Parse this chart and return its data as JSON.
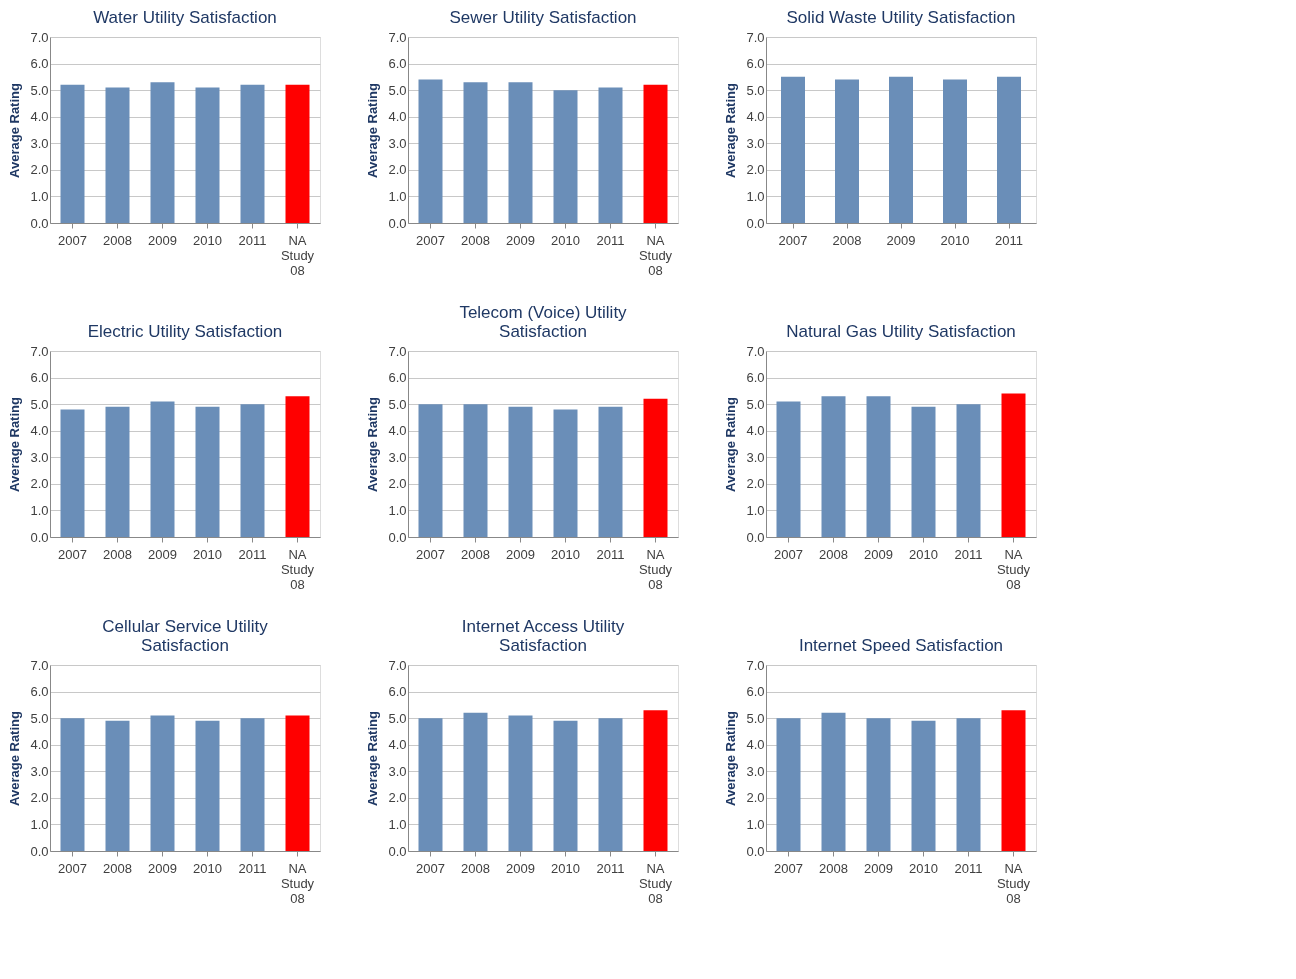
{
  "chart_data": [
    {
      "type": "bar",
      "title": "Water Utility Satisfaction",
      "ylabel": "Average Rating",
      "categories": [
        "2007",
        "2008",
        "2009",
        "2010",
        "2011",
        "NA Study 08"
      ],
      "values": [
        5.2,
        5.1,
        5.3,
        5.1,
        5.2,
        5.2
      ],
      "colors": [
        "#6a8eb8",
        "#6a8eb8",
        "#6a8eb8",
        "#6a8eb8",
        "#6a8eb8",
        "#ff0000"
      ],
      "ylim": [
        0,
        7
      ],
      "yticks": [
        {
          "value": 0,
          "label": "0.0"
        },
        {
          "value": 1,
          "label": "1.0"
        },
        {
          "value": 2,
          "label": "2.0"
        },
        {
          "value": 3,
          "label": "3.0"
        },
        {
          "value": 4,
          "label": "4.0"
        },
        {
          "value": 5,
          "label": "5.0"
        },
        {
          "value": 6,
          "label": "6.0"
        },
        {
          "value": 7,
          "label": "7.0"
        }
      ],
      "grid": "y"
    },
    {
      "type": "bar",
      "title": "Sewer Utility Satisfaction",
      "ylabel": "Average Rating",
      "categories": [
        "2007",
        "2008",
        "2009",
        "2010",
        "2011",
        "NA Study 08"
      ],
      "values": [
        5.4,
        5.3,
        5.3,
        5.0,
        5.1,
        5.2
      ],
      "colors": [
        "#6a8eb8",
        "#6a8eb8",
        "#6a8eb8",
        "#6a8eb8",
        "#6a8eb8",
        "#ff0000"
      ],
      "ylim": [
        0,
        7
      ],
      "yticks": [
        {
          "value": 0,
          "label": "0.0"
        },
        {
          "value": 1,
          "label": "1.0"
        },
        {
          "value": 2,
          "label": "2.0"
        },
        {
          "value": 3,
          "label": "3.0"
        },
        {
          "value": 4,
          "label": "4.0"
        },
        {
          "value": 5,
          "label": "5.0"
        },
        {
          "value": 6,
          "label": "6.0"
        },
        {
          "value": 7,
          "label": "7.0"
        }
      ],
      "grid": "y"
    },
    {
      "type": "bar",
      "title": "Solid Waste Utility Satisfaction",
      "ylabel": "Average Rating",
      "categories": [
        "2007",
        "2008",
        "2009",
        "2010",
        "2011"
      ],
      "values": [
        5.5,
        5.4,
        5.5,
        5.4,
        5.5
      ],
      "colors": [
        "#6a8eb8",
        "#6a8eb8",
        "#6a8eb8",
        "#6a8eb8",
        "#6a8eb8"
      ],
      "ylim": [
        0,
        7
      ],
      "yticks": [
        {
          "value": 0,
          "label": "0.0"
        },
        {
          "value": 1,
          "label": "1.0"
        },
        {
          "value": 2,
          "label": "2.0"
        },
        {
          "value": 3,
          "label": "3.0"
        },
        {
          "value": 4,
          "label": "4.0"
        },
        {
          "value": 5,
          "label": "5.0"
        },
        {
          "value": 6,
          "label": "6.0"
        },
        {
          "value": 7,
          "label": "7.0"
        }
      ],
      "grid": "y"
    },
    {
      "type": "bar",
      "title": "Electric Utility Satisfaction",
      "ylabel": "Average Rating",
      "categories": [
        "2007",
        "2008",
        "2009",
        "2010",
        "2011",
        "NA Study 08"
      ],
      "values": [
        4.8,
        4.9,
        5.1,
        4.9,
        5.0,
        5.3
      ],
      "colors": [
        "#6a8eb8",
        "#6a8eb8",
        "#6a8eb8",
        "#6a8eb8",
        "#6a8eb8",
        "#ff0000"
      ],
      "ylim": [
        0,
        7
      ],
      "yticks": [
        {
          "value": 0,
          "label": "0.0"
        },
        {
          "value": 1,
          "label": "1.0"
        },
        {
          "value": 2,
          "label": "2.0"
        },
        {
          "value": 3,
          "label": "3.0"
        },
        {
          "value": 4,
          "label": "4.0"
        },
        {
          "value": 5,
          "label": "5.0"
        },
        {
          "value": 6,
          "label": "6.0"
        },
        {
          "value": 7,
          "label": "7.0"
        }
      ],
      "grid": "y"
    },
    {
      "type": "bar",
      "title": "Telecom (Voice) Utility Satisfaction",
      "ylabel": "Average Rating",
      "categories": [
        "2007",
        "2008",
        "2009",
        "2010",
        "2011",
        "NA Study 08"
      ],
      "values": [
        5.0,
        5.0,
        4.9,
        4.8,
        4.9,
        5.2
      ],
      "colors": [
        "#6a8eb8",
        "#6a8eb8",
        "#6a8eb8",
        "#6a8eb8",
        "#6a8eb8",
        "#ff0000"
      ],
      "ylim": [
        0,
        7
      ],
      "yticks": [
        {
          "value": 0,
          "label": "0.0"
        },
        {
          "value": 1,
          "label": "1.0"
        },
        {
          "value": 2,
          "label": "2.0"
        },
        {
          "value": 3,
          "label": "3.0"
        },
        {
          "value": 4,
          "label": "4.0"
        },
        {
          "value": 5,
          "label": "5.0"
        },
        {
          "value": 6,
          "label": "6.0"
        },
        {
          "value": 7,
          "label": "7.0"
        }
      ],
      "grid": "y"
    },
    {
      "type": "bar",
      "title": "Natural Gas Utility Satisfaction",
      "ylabel": "Average Rating",
      "categories": [
        "2007",
        "2008",
        "2009",
        "2010",
        "2011",
        "NA Study 08"
      ],
      "values": [
        5.1,
        5.3,
        5.3,
        4.9,
        5.0,
        5.4
      ],
      "colors": [
        "#6a8eb8",
        "#6a8eb8",
        "#6a8eb8",
        "#6a8eb8",
        "#6a8eb8",
        "#ff0000"
      ],
      "ylim": [
        0,
        7
      ],
      "yticks": [
        {
          "value": 0,
          "label": "0.0"
        },
        {
          "value": 1,
          "label": "1.0"
        },
        {
          "value": 2,
          "label": "2.0"
        },
        {
          "value": 3,
          "label": "3.0"
        },
        {
          "value": 4,
          "label": "4.0"
        },
        {
          "value": 5,
          "label": "5.0"
        },
        {
          "value": 6,
          "label": "6.0"
        },
        {
          "value": 7,
          "label": "7.0"
        }
      ],
      "grid": "y"
    },
    {
      "type": "bar",
      "title": "Cellular Service Utility Satisfaction",
      "ylabel": "Average Rating",
      "categories": [
        "2007",
        "2008",
        "2009",
        "2010",
        "2011",
        "NA Study 08"
      ],
      "values": [
        5.0,
        4.9,
        5.1,
        4.9,
        5.0,
        5.1
      ],
      "colors": [
        "#6a8eb8",
        "#6a8eb8",
        "#6a8eb8",
        "#6a8eb8",
        "#6a8eb8",
        "#ff0000"
      ],
      "ylim": [
        0,
        7
      ],
      "yticks": [
        {
          "value": 0,
          "label": "0.0"
        },
        {
          "value": 1,
          "label": "1.0"
        },
        {
          "value": 2,
          "label": "2.0"
        },
        {
          "value": 3,
          "label": "3.0"
        },
        {
          "value": 4,
          "label": "4.0"
        },
        {
          "value": 5,
          "label": "5.0"
        },
        {
          "value": 6,
          "label": "6.0"
        },
        {
          "value": 7,
          "label": "7.0"
        }
      ],
      "grid": "y"
    },
    {
      "type": "bar",
      "title": "Internet Access Utility Satisfaction",
      "ylabel": "Average Rating",
      "categories": [
        "2007",
        "2008",
        "2009",
        "2010",
        "2011",
        "NA Study 08"
      ],
      "values": [
        5.0,
        5.2,
        5.1,
        4.9,
        5.0,
        5.3
      ],
      "colors": [
        "#6a8eb8",
        "#6a8eb8",
        "#6a8eb8",
        "#6a8eb8",
        "#6a8eb8",
        "#ff0000"
      ],
      "ylim": [
        0,
        7
      ],
      "yticks": [
        {
          "value": 0,
          "label": "0.0"
        },
        {
          "value": 1,
          "label": "1.0"
        },
        {
          "value": 2,
          "label": "2.0"
        },
        {
          "value": 3,
          "label": "3.0"
        },
        {
          "value": 4,
          "label": "4.0"
        },
        {
          "value": 5,
          "label": "5.0"
        },
        {
          "value": 6,
          "label": "6.0"
        },
        {
          "value": 7,
          "label": "7.0"
        }
      ],
      "grid": "y"
    },
    {
      "type": "bar",
      "title": "Internet Speed Satisfaction",
      "ylabel": "Average Rating",
      "categories": [
        "2007",
        "2008",
        "2009",
        "2010",
        "2011",
        "NA Study 08"
      ],
      "values": [
        5.0,
        5.2,
        5.0,
        4.9,
        5.0,
        5.3
      ],
      "colors": [
        "#6a8eb8",
        "#6a8eb8",
        "#6a8eb8",
        "#6a8eb8",
        "#6a8eb8",
        "#ff0000"
      ],
      "ylim": [
        0,
        7
      ],
      "yticks": [
        {
          "value": 0,
          "label": "0.0"
        },
        {
          "value": 1,
          "label": "1.0"
        },
        {
          "value": 2,
          "label": "2.0"
        },
        {
          "value": 3,
          "label": "3.0"
        },
        {
          "value": 4,
          "label": "4.0"
        },
        {
          "value": 5,
          "label": "5.0"
        },
        {
          "value": 6,
          "label": "6.0"
        },
        {
          "value": 7,
          "label": "7.0"
        }
      ],
      "grid": "y"
    }
  ]
}
